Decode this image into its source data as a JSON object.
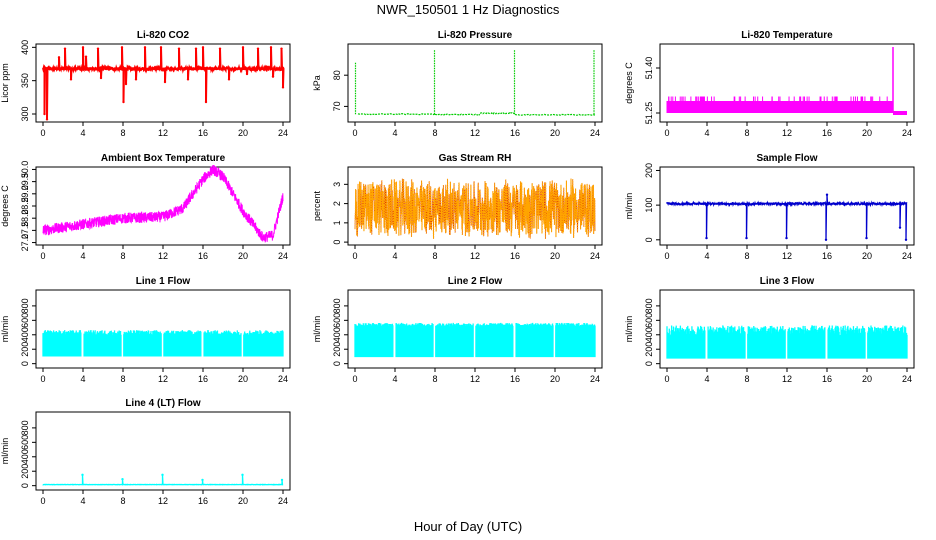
{
  "title": "NWR_150501  1 Hz Diagnostics",
  "xlabel": "Hour of Day (UTC)",
  "chart_data": [
    {
      "type": "line",
      "title": "Li-820 CO2",
      "ylabel": "Licor ppm",
      "color": "#ff0000",
      "xlim": [
        0,
        24
      ],
      "xticks": [
        0,
        4,
        8,
        12,
        16,
        20,
        24
      ],
      "ylim": [
        288,
        405
      ],
      "yticks": [
        300,
        350,
        400
      ],
      "signal": "baseline-spikes",
      "baseline": 368,
      "noise": 2,
      "spikes": [
        {
          "x": 0.15,
          "y": 300
        },
        {
          "x": 0.4,
          "y": 292
        },
        {
          "x": 1.6,
          "y": 385
        },
        {
          "x": 2.2,
          "y": 398
        },
        {
          "x": 2.8,
          "y": 352
        },
        {
          "x": 4.0,
          "y": 400
        },
        {
          "x": 4.3,
          "y": 386
        },
        {
          "x": 5.5,
          "y": 398
        },
        {
          "x": 5.8,
          "y": 354
        },
        {
          "x": 7.9,
          "y": 400
        },
        {
          "x": 8.05,
          "y": 318
        },
        {
          "x": 8.3,
          "y": 345
        },
        {
          "x": 9.3,
          "y": 352
        },
        {
          "x": 10.2,
          "y": 400
        },
        {
          "x": 11.8,
          "y": 400
        },
        {
          "x": 12.2,
          "y": 348
        },
        {
          "x": 13.6,
          "y": 398
        },
        {
          "x": 14.5,
          "y": 352
        },
        {
          "x": 15.3,
          "y": 398
        },
        {
          "x": 16.0,
          "y": 400
        },
        {
          "x": 16.3,
          "y": 318
        },
        {
          "x": 17.7,
          "y": 398
        },
        {
          "x": 18.6,
          "y": 352
        },
        {
          "x": 20.0,
          "y": 400
        },
        {
          "x": 20.4,
          "y": 360
        },
        {
          "x": 21.5,
          "y": 398
        },
        {
          "x": 22.8,
          "y": 400
        },
        {
          "x": 23.0,
          "y": 356
        },
        {
          "x": 23.85,
          "y": 398
        },
        {
          "x": 24.0,
          "y": 340
        }
      ]
    },
    {
      "type": "line",
      "title": "Li-820 Pressure",
      "ylabel": "kPa",
      "color": "#00cc00",
      "xlim": [
        0,
        24
      ],
      "xticks": [
        0,
        4,
        8,
        12,
        16,
        20,
        24
      ],
      "ylim": [
        65,
        90
      ],
      "yticks": [
        70,
        80
      ],
      "signal": "steps-spikes",
      "segments": [
        {
          "x0": 0.3,
          "x1": 8,
          "y": 67.5
        },
        {
          "x0": 8,
          "x1": 12.5,
          "y": 67.4
        },
        {
          "x0": 12.5,
          "x1": 16,
          "y": 67.8
        },
        {
          "x0": 16,
          "x1": 24,
          "y": 67.3
        }
      ],
      "spikes": [
        {
          "x": 0.05,
          "y": 84
        },
        {
          "x": 7.95,
          "y": 88
        },
        {
          "x": 15.95,
          "y": 88
        },
        {
          "x": 23.9,
          "y": 88
        }
      ]
    },
    {
      "type": "line",
      "title": "Li-820 Temperature",
      "ylabel": "degrees C",
      "color": "#ff00ff",
      "xlim": [
        0,
        24
      ],
      "xticks": [
        0,
        4,
        8,
        12,
        16,
        20,
        24
      ],
      "ylim": [
        51.22,
        51.48
      ],
      "yticks": [
        51.25,
        51.4
      ],
      "signal": "band",
      "band": {
        "x0": 0,
        "x1": 22.6,
        "low": 51.25,
        "high": 51.29,
        "high_alt": 51.305
      },
      "tail": {
        "x0": 22.6,
        "x1": 24,
        "y": 51.25
      },
      "spikes": [
        {
          "x": 22.6,
          "y": 51.47
        }
      ]
    },
    {
      "type": "line",
      "title": "Ambient Box Temperature",
      "ylabel": "degrees C",
      "color": "#ff00ff",
      "xlim": [
        0,
        24
      ],
      "xticks": [
        0,
        4,
        8,
        12,
        16,
        20,
        24
      ],
      "ylim": [
        26.9,
        30.1
      ],
      "yticks": [
        27.0,
        27.5,
        28.0,
        28.5,
        29.0,
        29.5,
        30.0
      ],
      "signal": "noisy-curve",
      "noise": 0.22,
      "curve": [
        [
          0,
          27.5
        ],
        [
          4,
          27.75
        ],
        [
          8,
          28.0
        ],
        [
          12,
          28.05
        ],
        [
          14,
          28.4
        ],
        [
          16,
          29.6
        ],
        [
          17,
          30.0
        ],
        [
          18,
          29.7
        ],
        [
          20,
          28.3
        ],
        [
          22,
          27.2
        ],
        [
          23,
          27.3
        ],
        [
          24,
          28.9
        ]
      ]
    },
    {
      "type": "scatter",
      "title": "Gas Stream RH",
      "ylabel": "percent",
      "color": "#ffa500",
      "color2": "#cc0000",
      "xlim": [
        0,
        24
      ],
      "xticks": [
        0,
        4,
        8,
        12,
        16,
        20,
        24
      ],
      "ylim": [
        -0.15,
        3.9
      ],
      "yticks": [
        0,
        1,
        2,
        3
      ],
      "signal": "random-band",
      "center": 1.75,
      "spread": 1.6
    },
    {
      "type": "line",
      "title": "Sample Flow",
      "ylabel": "ml/min",
      "color": "#0000cc",
      "xlim": [
        0,
        24
      ],
      "xticks": [
        0,
        4,
        8,
        12,
        16,
        20,
        24
      ],
      "ylim": [
        -15,
        210
      ],
      "yticks": [
        0,
        100,
        200
      ],
      "signal": "baseline-spikes",
      "baseline": 104,
      "noise": 3,
      "spikes": [
        {
          "x": 3.95,
          "y": 5
        },
        {
          "x": 7.95,
          "y": 5
        },
        {
          "x": 11.95,
          "y": 5
        },
        {
          "x": 15.9,
          "y": 0
        },
        {
          "x": 16.0,
          "y": 130
        },
        {
          "x": 19.95,
          "y": 5
        },
        {
          "x": 23.3,
          "y": 35
        },
        {
          "x": 23.9,
          "y": 0
        }
      ]
    },
    {
      "type": "line",
      "title": "Line 1 Flow",
      "ylabel": "ml/min",
      "color": "#00ffff",
      "xlim": [
        0,
        24
      ],
      "xticks": [
        0,
        4,
        8,
        12,
        16,
        20,
        24
      ],
      "ylim": [
        -60,
        1020
      ],
      "yticks": [
        0,
        200,
        400,
        600,
        800
      ],
      "signal": "square-band",
      "low": 100,
      "high": 430,
      "jitter": 35,
      "gaps": [
        3.95,
        7.95,
        11.95,
        15.95,
        19.95
      ]
    },
    {
      "type": "line",
      "title": "Line 2 Flow",
      "ylabel": "ml/min",
      "color": "#00ffff",
      "xlim": [
        0,
        24
      ],
      "xticks": [
        0,
        4,
        8,
        12,
        16,
        20,
        24
      ],
      "ylim": [
        -60,
        1020
      ],
      "yticks": [
        0,
        200,
        400,
        600,
        800
      ],
      "signal": "square-band",
      "low": 90,
      "high": 540,
      "jitter": 25,
      "gaps": [
        3.95,
        7.95,
        11.95,
        15.95,
        19.95
      ]
    },
    {
      "type": "line",
      "title": "Line 3 Flow",
      "ylabel": "ml/min",
      "color": "#00ffff",
      "xlim": [
        0,
        24
      ],
      "xticks": [
        0,
        4,
        8,
        12,
        16,
        20,
        24
      ],
      "ylim": [
        -60,
        1020
      ],
      "yticks": [
        0,
        200,
        400,
        600,
        800
      ],
      "signal": "square-band",
      "low": 70,
      "high": 460,
      "jitter": 70,
      "gaps": [
        3.95,
        7.95,
        11.95,
        15.95,
        19.95
      ]
    },
    {
      "type": "line",
      "title": "Line 4 (LT) Flow",
      "ylabel": "ml/min",
      "color": "#00ffff",
      "xlim": [
        0,
        24
      ],
      "xticks": [
        0,
        4,
        8,
        12,
        16,
        20,
        24
      ],
      "ylim": [
        -60,
        1020
      ],
      "yticks": [
        0,
        200,
        400,
        600,
        800
      ],
      "signal": "baseline-spikes",
      "baseline": 15,
      "noise": 2,
      "spikes": [
        {
          "x": 3.95,
          "y": 150
        },
        {
          "x": 7.95,
          "y": 90
        },
        {
          "x": 11.95,
          "y": 150
        },
        {
          "x": 15.95,
          "y": 80
        },
        {
          "x": 19.95,
          "y": 150
        },
        {
          "x": 23.9,
          "y": 80
        }
      ]
    }
  ]
}
